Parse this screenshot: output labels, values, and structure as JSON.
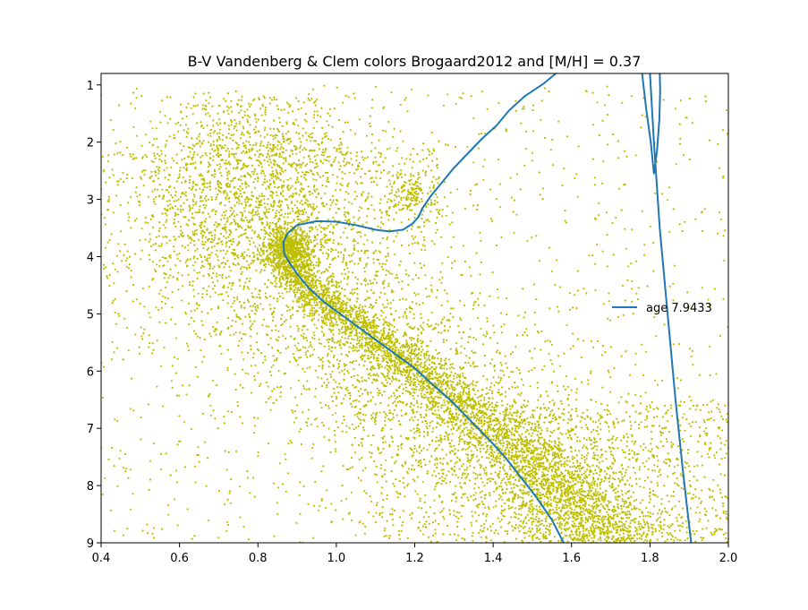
{
  "chart_data": {
    "type": "scatter",
    "title": "B-V Vandenberg & Clem colors Brogaard2012 and [M/H] = 0.37",
    "xlabel": "",
    "ylabel": "",
    "xlim": [
      0.4,
      2.0
    ],
    "ylim": [
      9,
      0.8
    ],
    "y_inverted": true,
    "grid": false,
    "legend_position": "center-right",
    "x_ticks": [
      "0.4",
      "0.6",
      "0.8",
      "1.0",
      "1.2",
      "1.4",
      "1.6",
      "1.8",
      "2.0"
    ],
    "y_ticks": [
      "1",
      "2",
      "3",
      "4",
      "5",
      "6",
      "7",
      "8",
      "9"
    ],
    "scatter_color": "#bfbf00",
    "line_color": "#1f77b4",
    "series": [
      {
        "name": "age 7.9433",
        "kind": "line",
        "segments": [
          [
            [
              1.58,
              9.0
            ],
            [
              1.55,
              8.6
            ],
            [
              1.51,
              8.2
            ],
            [
              1.47,
              7.85
            ],
            [
              1.43,
              7.5
            ],
            [
              1.39,
              7.2
            ],
            [
              1.34,
              6.85
            ],
            [
              1.29,
              6.5
            ],
            [
              1.24,
              6.2
            ],
            [
              1.2,
              5.95
            ],
            [
              1.14,
              5.65
            ],
            [
              1.08,
              5.35
            ],
            [
              1.02,
              5.05
            ],
            [
              0.97,
              4.8
            ],
            [
              0.93,
              4.55
            ],
            [
              0.9,
              4.3
            ],
            [
              0.88,
              4.1
            ],
            [
              0.867,
              3.95
            ],
            [
              0.865,
              3.75
            ],
            [
              0.875,
              3.6
            ],
            [
              0.9,
              3.45
            ],
            [
              0.95,
              3.38
            ],
            [
              1.0,
              3.39
            ],
            [
              1.05,
              3.45
            ],
            [
              1.1,
              3.53
            ],
            [
              1.135,
              3.56
            ],
            [
              1.17,
              3.53
            ],
            [
              1.195,
              3.42
            ],
            [
              1.21,
              3.3
            ],
            [
              1.22,
              3.15
            ],
            [
              1.24,
              2.95
            ],
            [
              1.27,
              2.7
            ],
            [
              1.3,
              2.45
            ],
            [
              1.335,
              2.2
            ],
            [
              1.37,
              1.95
            ],
            [
              1.41,
              1.7
            ],
            [
              1.44,
              1.45
            ],
            [
              1.48,
              1.2
            ],
            [
              1.53,
              0.97
            ],
            [
              1.56,
              0.8
            ]
          ],
          [
            [
              1.78,
              0.8
            ],
            [
              1.79,
              1.4
            ],
            [
              1.802,
              2.0
            ],
            [
              1.81,
              2.55
            ],
            [
              1.818,
              2.15
            ],
            [
              1.824,
              1.6
            ],
            [
              1.826,
              1.1
            ],
            [
              1.825,
              0.8
            ]
          ],
          [
            [
              1.8,
              0.8
            ],
            [
              1.81,
              2.0
            ],
            [
              1.825,
              3.5
            ],
            [
              1.845,
              5.0
            ],
            [
              1.865,
              6.5
            ],
            [
              1.885,
              7.8
            ],
            [
              1.905,
              9.0
            ]
          ]
        ]
      },
      {
        "kind": "scatter",
        "note": "field and cluster stars (dense cloud along main sequence, sparse background)"
      }
    ]
  }
}
